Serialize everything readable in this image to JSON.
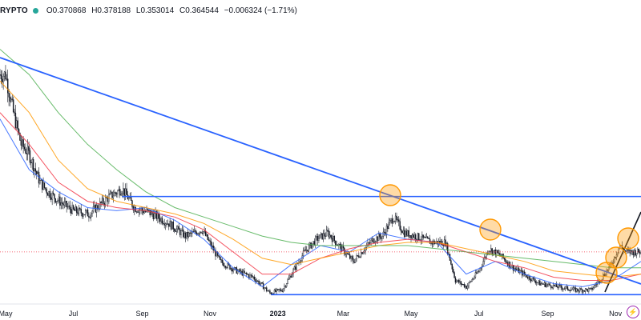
{
  "header": {
    "symbol": "RYPTO",
    "status_color": "#26a69a",
    "open": "O0.370868",
    "high": "H0.378188",
    "low": "L0.353014",
    "close": "C0.364544",
    "change": "−0.006324 (−1.71%)"
  },
  "chart_data": {
    "type": "candlestick",
    "x_tick_labels": [
      "May",
      "Jul",
      "Sep",
      "Nov",
      "2023",
      "Mar",
      "May",
      "Jul",
      "Sep",
      "Nov"
    ],
    "approx_close_path": [
      [
        "2022-05-01",
        0.92
      ],
      [
        "2022-05-08",
        0.8
      ],
      [
        "2022-05-15",
        0.7
      ],
      [
        "2022-05-22",
        0.67
      ],
      [
        "2022-06-01",
        0.58
      ],
      [
        "2022-06-08",
        0.55
      ],
      [
        "2022-06-15",
        0.53
      ],
      [
        "2022-06-22",
        0.51
      ],
      [
        "2022-07-01",
        0.49
      ],
      [
        "2022-07-15",
        0.48
      ],
      [
        "2022-08-01",
        0.53
      ],
      [
        "2022-08-14",
        0.56
      ],
      [
        "2022-08-25",
        0.5
      ],
      [
        "2022-09-10",
        0.48
      ],
      [
        "2022-09-25",
        0.45
      ],
      [
        "2022-10-10",
        0.41
      ],
      [
        "2022-10-25",
        0.43
      ],
      [
        "2022-11-10",
        0.33
      ],
      [
        "2022-11-25",
        0.3
      ],
      [
        "2022-12-10",
        0.28
      ],
      [
        "2022-12-25",
        0.23
      ],
      [
        "2023-01-05",
        0.24
      ],
      [
        "2023-01-15",
        0.3
      ],
      [
        "2023-01-25",
        0.36
      ],
      [
        "2023-02-05",
        0.4
      ],
      [
        "2023-02-15",
        0.42
      ],
      [
        "2023-02-25",
        0.38
      ],
      [
        "2023-03-10",
        0.33
      ],
      [
        "2023-03-20",
        0.37
      ],
      [
        "2023-03-28",
        0.4
      ],
      [
        "2023-04-05",
        0.41
      ],
      [
        "2023-04-15",
        0.47
      ],
      [
        "2023-04-25",
        0.42
      ],
      [
        "2023-05-05",
        0.41
      ],
      [
        "2023-05-20",
        0.39
      ],
      [
        "2023-06-01",
        0.39
      ],
      [
        "2023-06-10",
        0.27
      ],
      [
        "2023-06-20",
        0.25
      ],
      [
        "2023-07-01",
        0.3
      ],
      [
        "2023-07-10",
        0.37
      ],
      [
        "2023-07-20",
        0.35
      ],
      [
        "2023-08-01",
        0.31
      ],
      [
        "2023-08-15",
        0.28
      ],
      [
        "2023-08-25",
        0.26
      ],
      [
        "2023-09-10",
        0.25
      ],
      [
        "2023-09-25",
        0.24
      ],
      [
        "2023-10-10",
        0.24
      ],
      [
        "2023-10-20",
        0.28
      ],
      [
        "2023-10-28",
        0.32
      ],
      [
        "2023-11-05",
        0.38
      ],
      [
        "2023-11-10",
        0.36
      ]
    ],
    "moving_averages": [
      {
        "color": "#2962ff",
        "values": [
          0.78,
          0.62,
          0.55,
          0.5,
          0.49,
          0.5,
          0.46,
          0.4,
          0.31,
          0.25,
          0.32,
          0.38,
          0.36,
          0.42,
          0.4,
          0.39,
          0.29,
          0.33,
          0.29,
          0.26,
          0.25,
          0.27,
          0.33
        ]
      },
      {
        "color": "#f23645",
        "values": [
          0.8,
          0.7,
          0.58,
          0.52,
          0.5,
          0.49,
          0.47,
          0.43,
          0.36,
          0.29,
          0.29,
          0.34,
          0.37,
          0.39,
          0.4,
          0.39,
          0.36,
          0.33,
          0.31,
          0.28,
          0.27,
          0.27,
          0.29
        ]
      },
      {
        "color": "#ff9800",
        "values": [
          0.9,
          0.8,
          0.65,
          0.56,
          0.52,
          0.5,
          0.48,
          0.45,
          0.4,
          0.34,
          0.32,
          0.34,
          0.36,
          0.38,
          0.39,
          0.39,
          0.37,
          0.35,
          0.33,
          0.3,
          0.29,
          0.28,
          0.29
        ]
      },
      {
        "color": "#4caf50",
        "values": [
          1.0,
          0.92,
          0.8,
          0.7,
          0.62,
          0.55,
          0.5,
          0.47,
          0.44,
          0.41,
          0.39,
          0.38,
          0.38,
          0.38,
          0.38,
          0.37,
          0.36,
          0.35,
          0.34,
          0.33,
          0.32,
          0.31,
          0.31
        ]
      }
    ],
    "levels": [
      {
        "kind": "horizontal",
        "color": "#2962ff",
        "value": 0.535
      },
      {
        "kind": "horizontal",
        "color": "#2962ff",
        "value": 0.225
      },
      {
        "kind": "trendline",
        "color": "#2962ff"
      },
      {
        "kind": "trendline",
        "color": "#131722"
      }
    ],
    "highlight_circles_color": "#ff9800",
    "up_color": "#131722",
    "down_color": "#131722",
    "last_price_line_color": "#f23645"
  }
}
